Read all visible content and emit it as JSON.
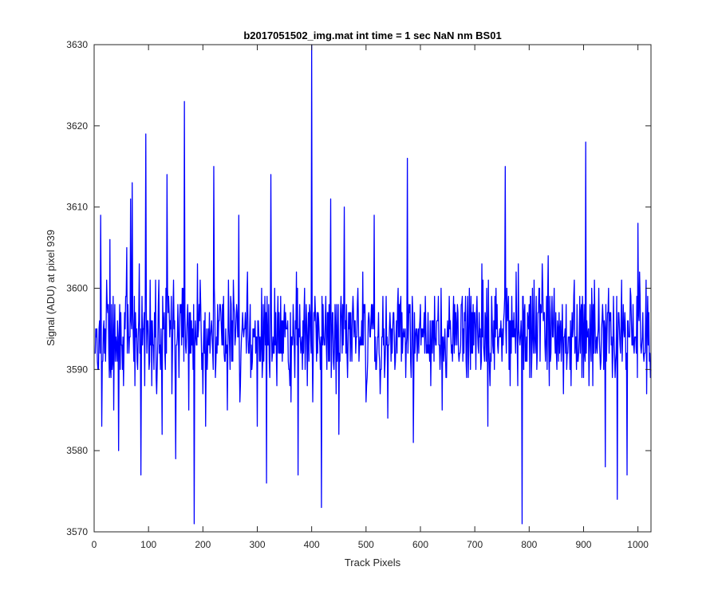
{
  "chart_data": {
    "type": "line",
    "title": "b2017051502_img.mat int time = 1 sec  NaN nm BS01",
    "xlabel": "Track Pixels",
    "ylabel": "Signal (ADU) at pixel 939",
    "xlim": [
      0,
      1024
    ],
    "ylim": [
      3570,
      3630
    ],
    "xticks": [
      0,
      100,
      200,
      300,
      400,
      500,
      600,
      700,
      800,
      900,
      1000
    ],
    "yticks": [
      3570,
      3580,
      3590,
      3600,
      3610,
      3620,
      3630
    ],
    "grid": false,
    "line_color": "#0000ff",
    "series": [
      {
        "x": [
          1,
          12,
          14,
          29,
          36,
          45,
          60,
          67,
          70,
          86,
          95,
          125,
          134,
          150,
          166,
          174,
          184,
          190,
          205,
          220,
          245,
          266,
          300,
          317,
          325,
          360,
          375,
          400,
          402,
          418,
          435,
          450,
          460,
          500,
          515,
          540,
          576,
          587,
          600,
          640,
          700,
          724,
          756,
          787,
          800,
          840,
          904,
          910,
          940,
          962,
          980,
          1000,
          1024
        ],
        "values": [
          3592,
          3609,
          3583,
          3606,
          3585,
          3580,
          3605,
          3611,
          3613,
          3577,
          3619,
          3582,
          3614,
          3579,
          3623,
          3585,
          3571,
          3603,
          3583,
          3615,
          3585,
          3609,
          3583,
          3576,
          3614,
          3588,
          3577,
          3630,
          3586,
          3573,
          3611,
          3582,
          3610,
          3586,
          3609,
          3584,
          3616,
          3581,
          3598,
          3585,
          3597,
          3583,
          3615,
          3571,
          3598,
          3592,
          3618,
          3588,
          3578,
          3574,
          3577,
          3608,
          3590
        ]
      }
    ]
  }
}
